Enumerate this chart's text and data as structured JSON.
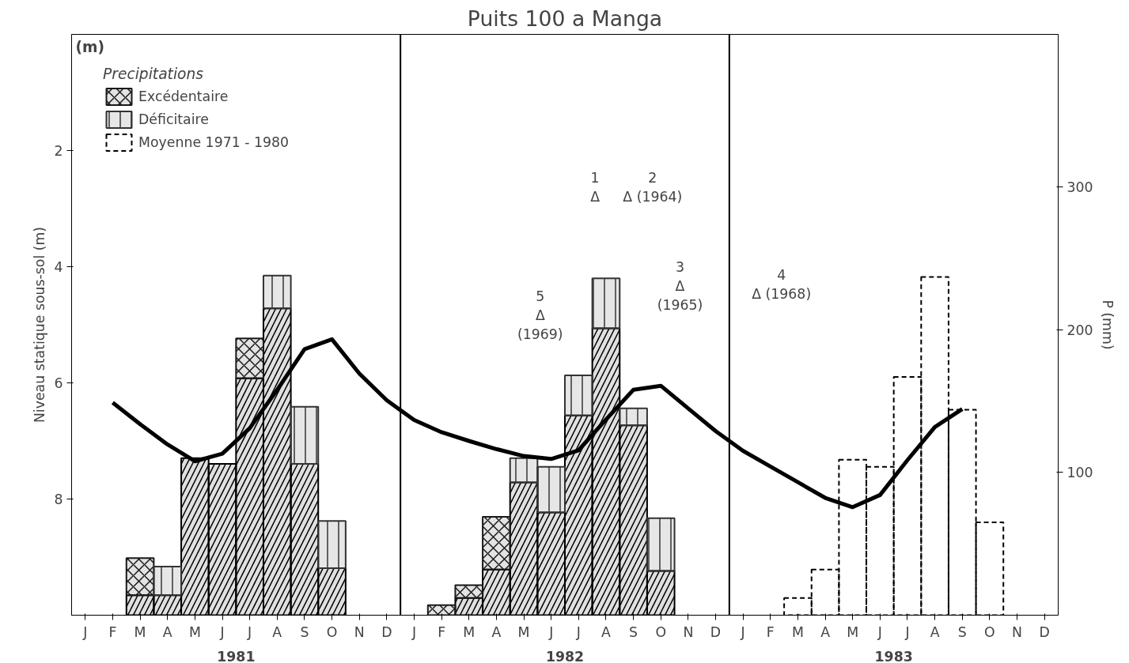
{
  "chart_data": {
    "type": "bar",
    "title": "Puits 100 a Manga",
    "ylabel": "Niveau statique sous-sol (m)",
    "y2label": "P (mm)",
    "legend_title": "Precipitations",
    "categories": [
      "J",
      "F",
      "M",
      "A",
      "M",
      "J",
      "J",
      "A",
      "S",
      "O",
      "N",
      "D",
      "J",
      "F",
      "M",
      "A",
      "M",
      "J",
      "J",
      "A",
      "S",
      "O",
      "N",
      "D",
      "J",
      "F",
      "M",
      "A",
      "M",
      "J",
      "J",
      "A",
      "S",
      "O",
      "N",
      "D"
    ],
    "ylim": [
      10,
      0
    ],
    "yticks": [
      2,
      4,
      6,
      8
    ],
    "y2lim": [
      0,
      407
    ],
    "y2ticks": [
      100,
      200,
      300
    ],
    "stacked": true,
    "grid": false,
    "legend": "top left",
    "series": [
      {
        "color": "#000000",
        "axis": "y2",
        "values": [
          null,
          null,
          14,
          14,
          110,
          106,
          166,
          215,
          106,
          33,
          null,
          null,
          null,
          null,
          12,
          32,
          93,
          72,
          140,
          201,
          133,
          31,
          null,
          null,
          null,
          null,
          null,
          null,
          null,
          null,
          null,
          null,
          null,
          null,
          null,
          null
        ]
      },
      {
        "name": "Excédentaire",
        "color": "#1a1a1a",
        "axis": "y2",
        "values": [
          null,
          null,
          26,
          null,
          null,
          null,
          28,
          null,
          null,
          null,
          null,
          null,
          null,
          7,
          9,
          37,
          null,
          null,
          null,
          null,
          null,
          null,
          null,
          null,
          null,
          null,
          null,
          null,
          null,
          null,
          null,
          null,
          null,
          null,
          null,
          null
        ]
      },
      {
        "name": "Déficitaire",
        "color": "#333333",
        "axis": "y2",
        "values": [
          null,
          null,
          null,
          20,
          null,
          null,
          null,
          23,
          40,
          33,
          null,
          null,
          null,
          null,
          null,
          null,
          17,
          32,
          28,
          35,
          12,
          37,
          null,
          null,
          null,
          null,
          null,
          null,
          null,
          null,
          null,
          null,
          null,
          null,
          null,
          null
        ]
      },
      {
        "name": "Moyenne 1971 - 1980",
        "color": "#000000",
        "axis": "y2",
        "line_style": "dashed",
        "values": [
          null,
          null,
          null,
          null,
          null,
          null,
          null,
          null,
          null,
          null,
          null,
          null,
          null,
          null,
          null,
          null,
          null,
          null,
          null,
          null,
          null,
          null,
          null,
          null,
          null,
          null,
          12,
          32,
          109,
          104,
          167,
          237,
          144,
          65,
          null,
          null
        ]
      },
      {
        "type": "line",
        "color": "#000000",
        "axis": "y",
        "values": [
          null,
          6.34,
          6.71,
          7.06,
          7.35,
          7.22,
          6.78,
          6.12,
          5.42,
          5.25,
          5.84,
          6.3,
          6.64,
          6.85,
          7.0,
          7.14,
          7.26,
          7.31,
          7.16,
          6.63,
          6.12,
          6.05,
          6.44,
          6.83,
          7.17,
          7.44,
          7.71,
          7.98,
          8.14,
          7.93,
          7.33,
          6.76,
          6.45,
          null,
          null,
          null
        ]
      }
    ],
    "annotations": [
      "(m)",
      "1981",
      "1982",
      "1983",
      "1\nΔ",
      "2\nΔ (1964)",
      "3\nΔ\n(1965)",
      "4\nΔ (1968)",
      "5\nΔ\n(1969)"
    ]
  }
}
